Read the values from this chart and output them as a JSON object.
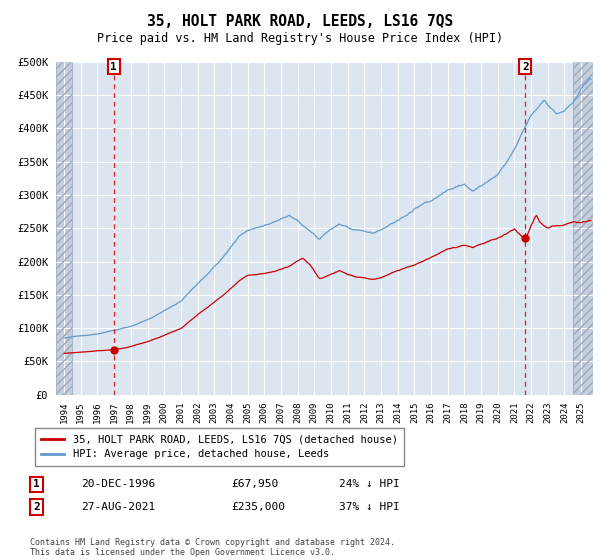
{
  "title": "35, HOLT PARK ROAD, LEEDS, LS16 7QS",
  "subtitle": "Price paid vs. HM Land Registry's House Price Index (HPI)",
  "ylim": [
    0,
    500000
  ],
  "yticks": [
    0,
    50000,
    100000,
    150000,
    200000,
    250000,
    300000,
    350000,
    400000,
    450000,
    500000
  ],
  "ytick_labels": [
    "£0",
    "£50K",
    "£100K",
    "£150K",
    "£200K",
    "£250K",
    "£300K",
    "£350K",
    "£400K",
    "£450K",
    "£500K"
  ],
  "xlim_start": 1993.5,
  "xlim_end": 2025.7,
  "bg_color": "#dce6f1",
  "grid_color": "#ffffff",
  "hatch_color": "#c5cedd",
  "sale1_year": 1996.97,
  "sale1_price": 67950,
  "sale1_label": "1",
  "sale1_date": "20-DEC-1996",
  "sale1_amount": "£67,950",
  "sale1_pct": "24% ↓ HPI",
  "sale2_year": 2021.65,
  "sale2_price": 235000,
  "sale2_label": "2",
  "sale2_date": "27-AUG-2021",
  "sale2_amount": "£235,000",
  "sale2_pct": "37% ↓ HPI",
  "line1_label": "35, HOLT PARK ROAD, LEEDS, LS16 7QS (detached house)",
  "line2_label": "HPI: Average price, detached house, Leeds",
  "line1_color": "#cc0000",
  "line2_color": "#6699cc",
  "footer": "Contains HM Land Registry data © Crown copyright and database right 2024.\nThis data is licensed under the Open Government Licence v3.0.",
  "hatch_left_end": 1994.5,
  "hatch_right_start": 2024.5
}
